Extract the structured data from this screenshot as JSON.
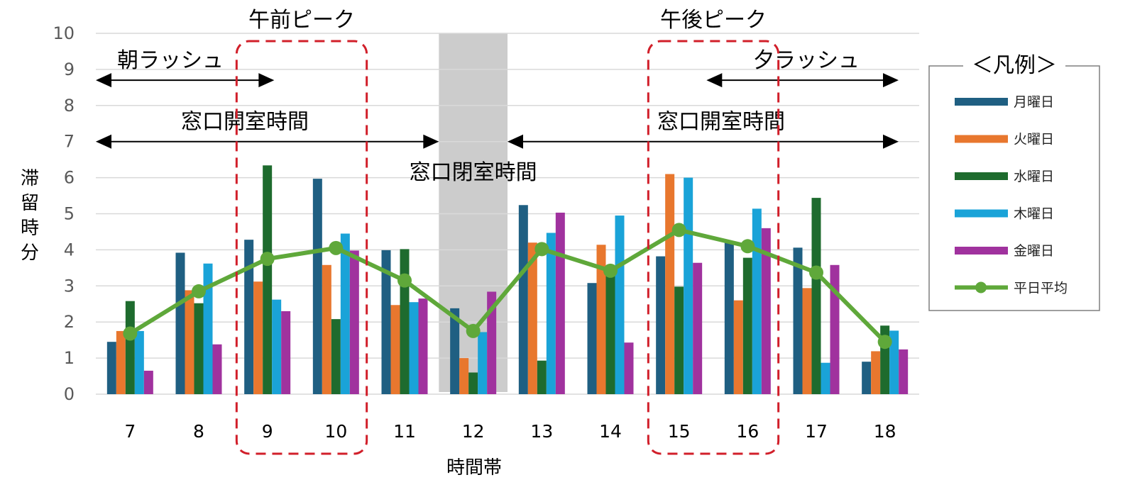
{
  "chart_data": {
    "type": "bar",
    "xlabel": "時間帯",
    "ylabel": "滞留時分",
    "ylim": [
      0,
      10
    ],
    "yticks": [
      0,
      1,
      2,
      3,
      4,
      5,
      6,
      7,
      8,
      9,
      10
    ],
    "categories": [
      "7",
      "8",
      "9",
      "10",
      "11",
      "12",
      "13",
      "14",
      "15",
      "16",
      "17",
      "18"
    ],
    "series": [
      {
        "name": "月曜日",
        "kind": "bar",
        "color": "#1f5f82",
        "values": [
          1.45,
          3.92,
          4.28,
          5.97,
          3.99,
          2.38,
          5.24,
          3.08,
          3.82,
          4.2,
          4.06,
          0.9
        ]
      },
      {
        "name": "火曜日",
        "kind": "bar",
        "color": "#e8772e",
        "values": [
          1.75,
          2.88,
          3.12,
          3.58,
          2.47,
          1.0,
          4.2,
          4.14,
          6.1,
          2.6,
          2.94,
          1.19
        ]
      },
      {
        "name": "水曜日",
        "kind": "bar",
        "color": "#1e6b2e",
        "values": [
          2.58,
          2.52,
          6.34,
          2.08,
          4.02,
          0.6,
          0.93,
          3.3,
          2.98,
          3.78,
          5.44,
          1.9
        ]
      },
      {
        "name": "木曜日",
        "kind": "bar",
        "color": "#1aa3d8",
        "values": [
          1.75,
          3.62,
          2.62,
          4.45,
          2.55,
          1.72,
          4.47,
          4.95,
          6.0,
          5.14,
          0.87,
          1.76
        ]
      },
      {
        "name": "金曜日",
        "kind": "bar",
        "color": "#a0329e",
        "values": [
          0.65,
          1.38,
          2.3,
          3.98,
          2.65,
          2.84,
          5.03,
          1.43,
          3.64,
          4.6,
          3.58,
          1.24
        ]
      },
      {
        "name": "平日平均",
        "kind": "line",
        "color": "#5fa83a",
        "values": [
          1.68,
          2.85,
          3.75,
          4.05,
          3.15,
          1.75,
          4.02,
          3.42,
          4.55,
          4.1,
          3.37,
          1.45
        ]
      }
    ],
    "legend_title": "＜凡例＞",
    "legend_position": "right",
    "shaded_region": {
      "category": "12",
      "label": "窓口閉室時間"
    },
    "peak_boxes": [
      {
        "label": "午前ピーク",
        "from": "9",
        "to": "10"
      },
      {
        "label": "午後ピーク",
        "from": "15",
        "to": "16"
      }
    ],
    "arrows": [
      {
        "label": "朝ラッシュ",
        "from": 6.5,
        "to": 9.1,
        "y": 8.7
      },
      {
        "label": "夕ラッシュ",
        "from": 15.4,
        "to": 18.2,
        "y": 8.7
      },
      {
        "label": "窓口開室時間",
        "from": 6.5,
        "to": 11.5,
        "y": 7.0
      },
      {
        "label": "窓口開室時間",
        "from": 12.5,
        "to": 18.2,
        "y": 7.0
      }
    ]
  }
}
